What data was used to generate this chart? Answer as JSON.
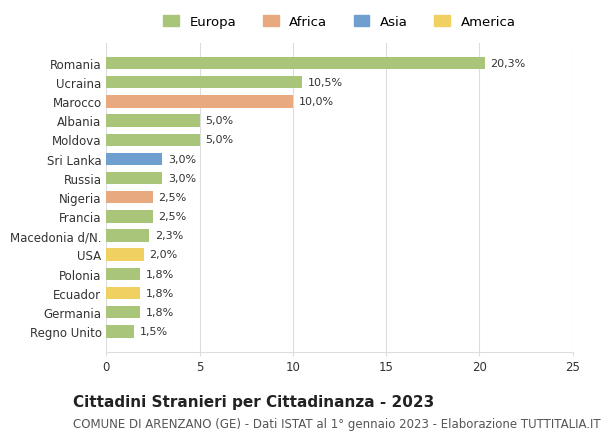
{
  "countries": [
    "Romania",
    "Ucraina",
    "Marocco",
    "Albania",
    "Moldova",
    "Sri Lanka",
    "Russia",
    "Nigeria",
    "Francia",
    "Macedonia d/N.",
    "USA",
    "Polonia",
    "Ecuador",
    "Germania",
    "Regno Unito"
  ],
  "values": [
    20.3,
    10.5,
    10.0,
    5.0,
    5.0,
    3.0,
    3.0,
    2.5,
    2.5,
    2.3,
    2.0,
    1.8,
    1.8,
    1.8,
    1.5
  ],
  "labels": [
    "20,3%",
    "10,5%",
    "10,0%",
    "5,0%",
    "5,0%",
    "3,0%",
    "3,0%",
    "2,5%",
    "2,5%",
    "2,3%",
    "2,0%",
    "1,8%",
    "1,8%",
    "1,8%",
    "1,5%"
  ],
  "continents": [
    "Europa",
    "Europa",
    "Africa",
    "Europa",
    "Europa",
    "Asia",
    "Europa",
    "Africa",
    "Europa",
    "Europa",
    "America",
    "Europa",
    "America",
    "Europa",
    "Europa"
  ],
  "colors": {
    "Europa": "#a8c57a",
    "Africa": "#e8a97e",
    "Asia": "#6e9fcf",
    "America": "#f0d060"
  },
  "legend_order": [
    "Europa",
    "Africa",
    "Asia",
    "America"
  ],
  "xlim": [
    0,
    25
  ],
  "xticks": [
    0,
    5,
    10,
    15,
    20,
    25
  ],
  "title": "Cittadini Stranieri per Cittadinanza - 2023",
  "subtitle": "COMUNE DI ARENZANO (GE) - Dati ISTAT al 1° gennaio 2023 - Elaborazione TUTTITALIA.IT",
  "bg_color": "#ffffff",
  "grid_color": "#dddddd",
  "bar_height": 0.65,
  "title_fontsize": 11,
  "subtitle_fontsize": 8.5,
  "label_fontsize": 8,
  "tick_fontsize": 8.5,
  "legend_fontsize": 9.5
}
